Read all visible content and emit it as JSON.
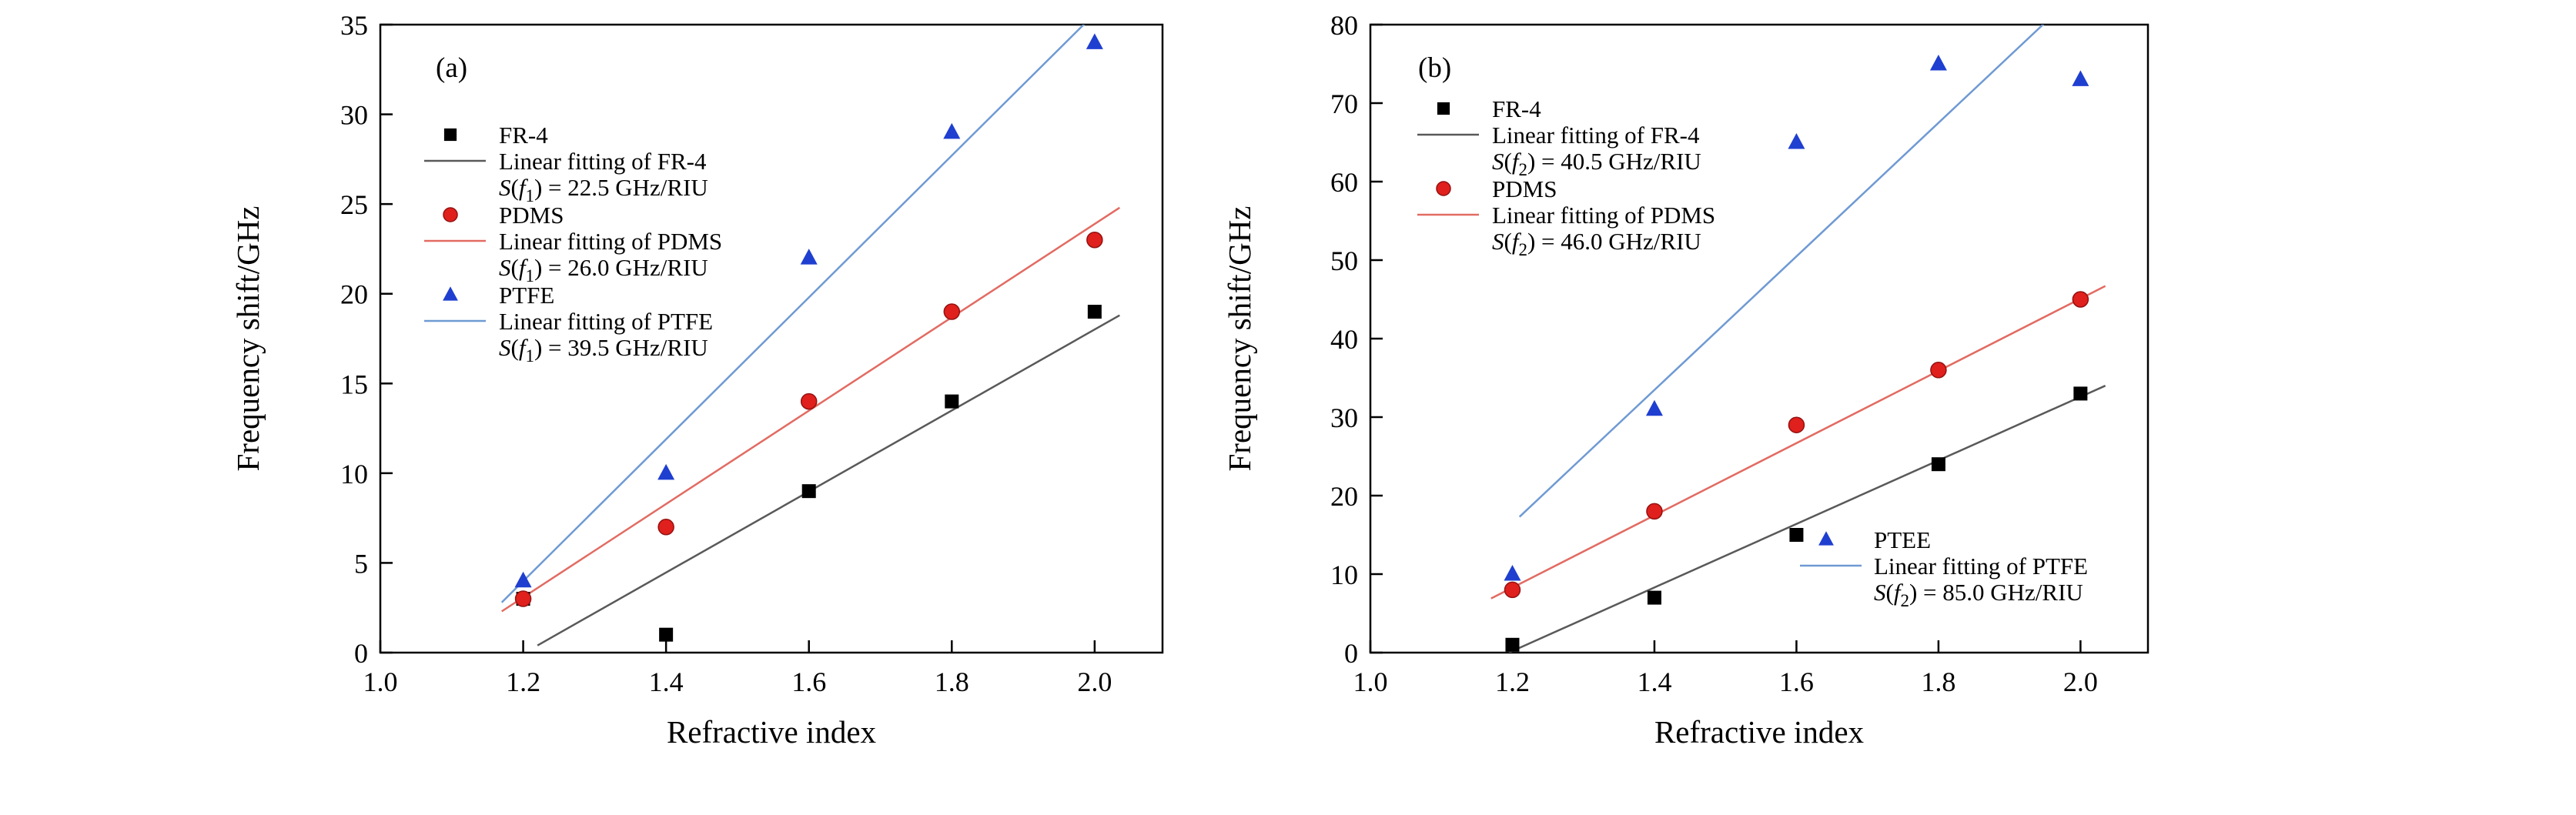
{
  "figure_background": "#ffffff",
  "chart_data": [
    {
      "panel_label": "(a)",
      "type": "scatter",
      "xlabel": "Refractive index",
      "ylabel": "Frequency shift/GHz",
      "xlim": [
        1.0,
        2.095
      ],
      "ylim": [
        0,
        35
      ],
      "grid": false,
      "legend_position": "upper-left",
      "xticks": [
        "1.0",
        "1.2",
        "1.4",
        "1.6",
        "1.8",
        "2.0"
      ],
      "yticks": [
        "0",
        "5",
        "10",
        "15",
        "20",
        "25",
        "30",
        "35"
      ],
      "series": [
        {
          "name": "FR-4",
          "marker": "square",
          "marker_color": "#000000",
          "line_color": "#595959",
          "x": [
            1.2,
            1.4,
            1.6,
            1.8,
            2.0
          ],
          "y": [
            3,
            1,
            9,
            14,
            19
          ],
          "fit_label": "Linear fitting of FR-4",
          "sensitivity_ghz_per_riu": 22.5,
          "fit_sensitivity": {
            "S": "S",
            "open": "(",
            "f": "f",
            "sub": "1",
            "tail": ") = 22.5 GHz/RIU"
          },
          "fit_line": {
            "x1": 1.22,
            "y1": 0.4,
            "x2": 2.035,
            "y2": 18.8
          }
        },
        {
          "name": "PDMS",
          "marker": "circle",
          "marker_color": "#e0201c",
          "line_color": "#e26b62",
          "x": [
            1.2,
            1.4,
            1.6,
            1.8,
            2.0
          ],
          "y": [
            3,
            7,
            14,
            19,
            23
          ],
          "fit_label": "Linear fitting of PDMS",
          "sensitivity_ghz_per_riu": 26.0,
          "fit_sensitivity": {
            "S": "S",
            "open": "(",
            "f": "f",
            "sub": "1",
            "tail": ") = 26.0 GHz/RIU"
          },
          "fit_line": {
            "x1": 1.17,
            "y1": 2.3,
            "x2": 2.035,
            "y2": 24.8
          }
        },
        {
          "name": "PTFE",
          "marker": "triangle",
          "marker_color": "#1f3fd0",
          "line_color": "#6f9ad3",
          "x": [
            1.2,
            1.4,
            1.6,
            1.8,
            2.0
          ],
          "y": [
            4,
            10,
            22,
            29,
            34
          ],
          "fit_label": "Linear fitting of PTFE",
          "sensitivity_ghz_per_riu": 39.5,
          "fit_sensitivity": {
            "S": "S",
            "open": "(",
            "f": "f",
            "sub": "1",
            "tail": ") = 39.5 GHz/RIU"
          },
          "fit_line": {
            "x1": 1.17,
            "y1": 2.8,
            "x2": 2.02,
            "y2": 36.4
          }
        }
      ]
    },
    {
      "panel_label": "(b)",
      "type": "scatter",
      "xlabel": "Refractive index",
      "ylabel": "Frequency shift/GHz",
      "xlim": [
        1.0,
        2.095
      ],
      "ylim": [
        0,
        80
      ],
      "grid": false,
      "legend_position": "upper-left and lower-right",
      "xticks": [
        "1.0",
        "1.2",
        "1.4",
        "1.6",
        "1.8",
        "2.0"
      ],
      "yticks": [
        "0",
        "10",
        "20",
        "30",
        "40",
        "50",
        "60",
        "70",
        "80"
      ],
      "series": [
        {
          "name": "FR-4",
          "marker": "square",
          "marker_color": "#000000",
          "line_color": "#595959",
          "x": [
            1.2,
            1.4,
            1.6,
            1.8,
            2.0
          ],
          "y": [
            1,
            7,
            15,
            24,
            33
          ],
          "fit_label": "Linear fitting of FR-4",
          "sensitivity_ghz_per_riu": 40.5,
          "fit_sensitivity": {
            "S": "S",
            "open": "(",
            "f": "f",
            "sub": "2",
            "tail": ") = 40.5 GHz/RIU"
          },
          "fit_line": {
            "x1": 1.195,
            "y1": 0,
            "x2": 2.035,
            "y2": 34
          }
        },
        {
          "name": "PDMS",
          "marker": "circle",
          "marker_color": "#e0201c",
          "line_color": "#e26b62",
          "x": [
            1.2,
            1.4,
            1.6,
            1.8,
            2.0
          ],
          "y": [
            8,
            18,
            29,
            36,
            45
          ],
          "fit_label": "Linear fitting of PDMS",
          "sensitivity_ghz_per_riu": 46.0,
          "fit_sensitivity": {
            "S": "S",
            "open": "(",
            "f": "f",
            "sub": "2",
            "tail": ") = 46.0 GHz/RIU"
          },
          "fit_line": {
            "x1": 1.17,
            "y1": 6.9,
            "x2": 2.035,
            "y2": 46.7
          }
        },
        {
          "name": "PTFE",
          "legend_name": "PTEE",
          "marker": "triangle",
          "marker_color": "#1f3fd0",
          "line_color": "#6f9ad3",
          "x": [
            1.2,
            1.4,
            1.6,
            1.8,
            2.0
          ],
          "y": [
            10,
            31,
            65,
            75,
            73
          ],
          "fit_label": "Linear fitting of PTFE",
          "sensitivity_ghz_per_riu": 85.0,
          "fit_sensitivity": {
            "S": "S",
            "open": "(",
            "f": "f",
            "sub": "2",
            "tail": ") = 85.0 GHz/RIU"
          },
          "fit_line": {
            "x1": 1.21,
            "y1": 17.3,
            "x2": 2.0,
            "y2": 84.5
          }
        }
      ]
    }
  ]
}
